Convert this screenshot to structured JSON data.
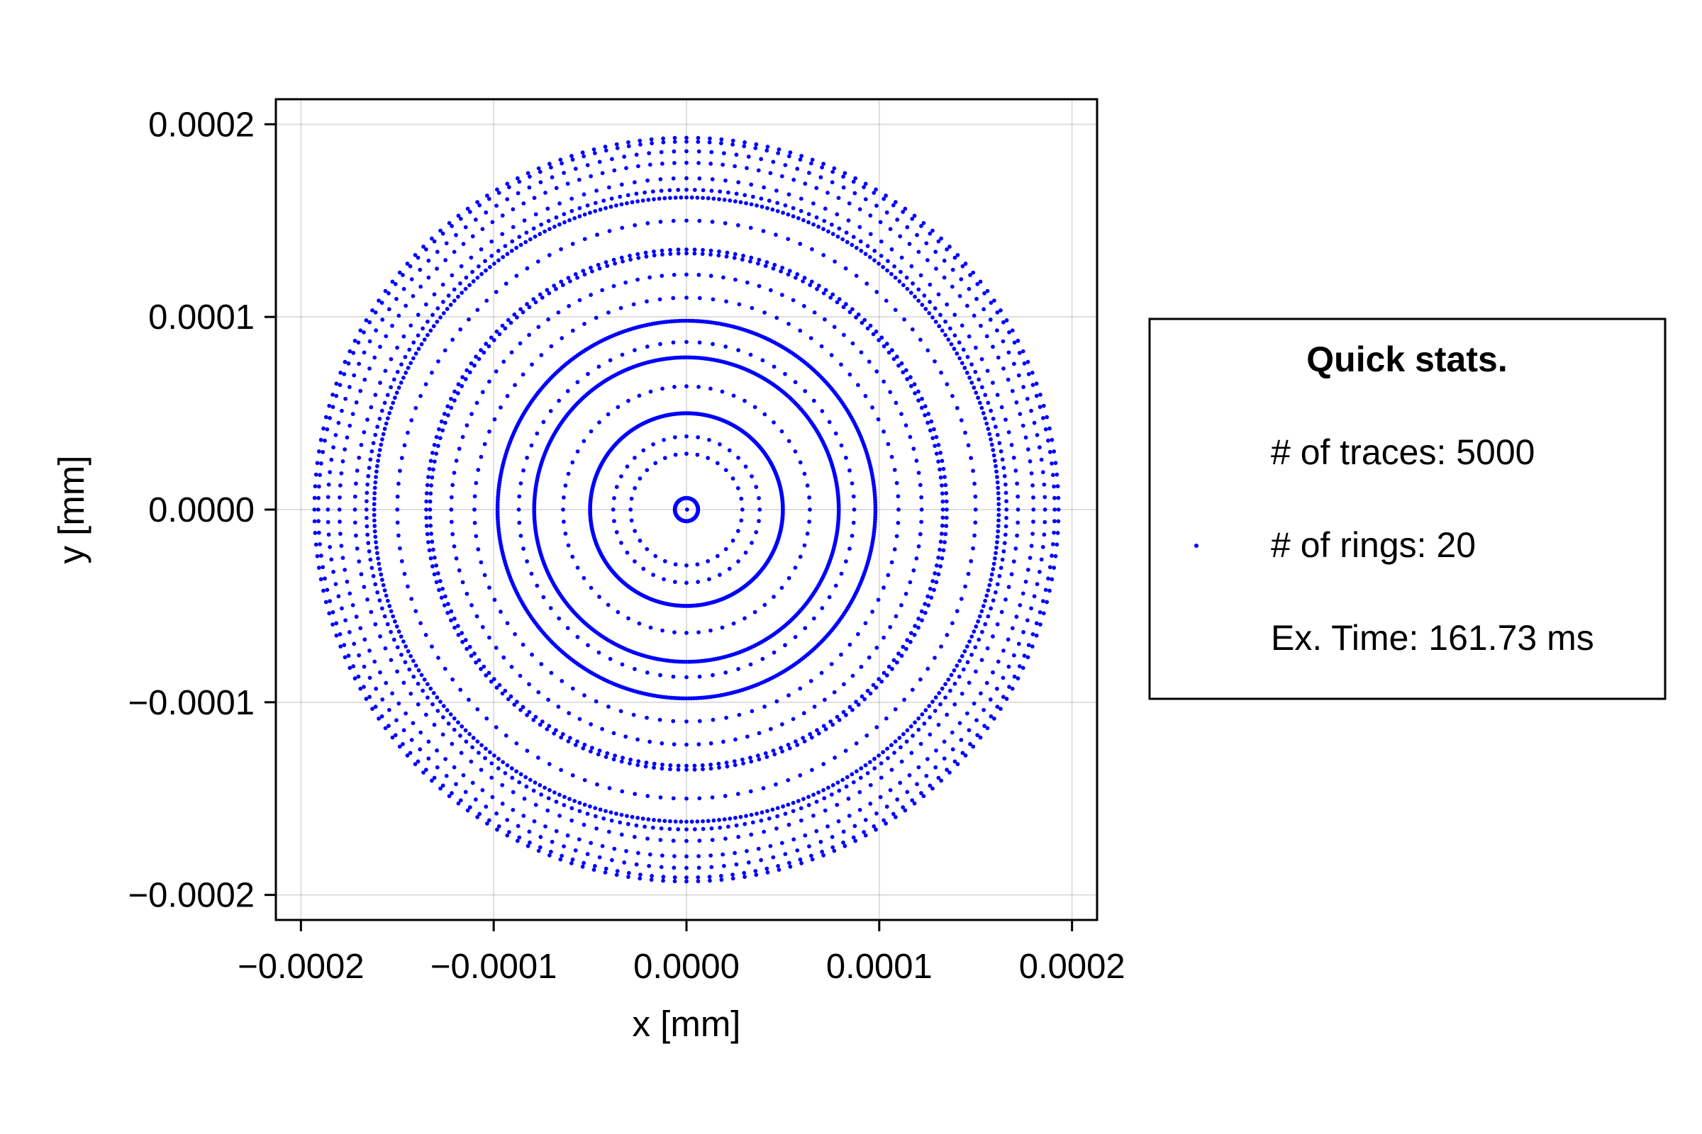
{
  "chart_data": {
    "type": "scatter",
    "title": "",
    "xlabel": "x [mm]",
    "ylabel": "y [mm]",
    "xlim": [
      -0.000213,
      0.000213
    ],
    "ylim": [
      -0.000213,
      0.000213
    ],
    "grid": true,
    "marker_color": "#0000ff",
    "x_ticks": [
      {
        "value": -0.0002,
        "label": "−0.0002"
      },
      {
        "value": -0.0001,
        "label": "−0.0001"
      },
      {
        "value": 0.0,
        "label": "0.0000"
      },
      {
        "value": 0.0001,
        "label": "0.0001"
      },
      {
        "value": 0.0002,
        "label": "0.0002"
      }
    ],
    "y_ticks": [
      {
        "value": -0.0002,
        "label": "−0.0002"
      },
      {
        "value": -0.0001,
        "label": "−0.0001"
      },
      {
        "value": 0.0,
        "label": "0.0000"
      },
      {
        "value": 0.0001,
        "label": "0.0001"
      },
      {
        "value": 0.0002,
        "label": "0.0002"
      }
    ],
    "rings": [
      {
        "radius": 3e-07,
        "points": 1
      },
      {
        "radius": 6e-06,
        "points": 120
      },
      {
        "radius": 2.9e-05,
        "points": 32
      },
      {
        "radius": 3.8e-05,
        "points": 40
      },
      {
        "radius": 5e-05,
        "points": 360
      },
      {
        "radius": 6.4e-05,
        "points": 64
      },
      {
        "radius": 7.9e-05,
        "points": 420
      },
      {
        "radius": 8.7e-05,
        "points": 80
      },
      {
        "radius": 9.8e-05,
        "points": 480
      },
      {
        "radius": 0.00011,
        "points": 100
      },
      {
        "radius": 0.000122,
        "points": 120
      },
      {
        "radius": 0.000133,
        "points": 200
      },
      {
        "radius": 0.000135,
        "points": 200
      },
      {
        "radius": 0.00015,
        "points": 140
      },
      {
        "radius": 0.000162,
        "points": 360
      },
      {
        "radius": 0.000166,
        "points": 240
      },
      {
        "radius": 0.000172,
        "points": 160
      },
      {
        "radius": 0.00018,
        "points": 180
      },
      {
        "radius": 0.000186,
        "points": 180
      },
      {
        "radius": 0.000191,
        "points": 200
      },
      {
        "radius": 0.000193,
        "points": 200
      }
    ],
    "legend": {
      "placement": "right",
      "title": "Quick stats.",
      "entries": [
        {
          "label": "# of traces: 5000",
          "marker": false
        },
        {
          "label": "# of rings: 20",
          "marker": true
        },
        {
          "label": "Ex. Time: 161.73 ms",
          "marker": false
        }
      ]
    }
  }
}
